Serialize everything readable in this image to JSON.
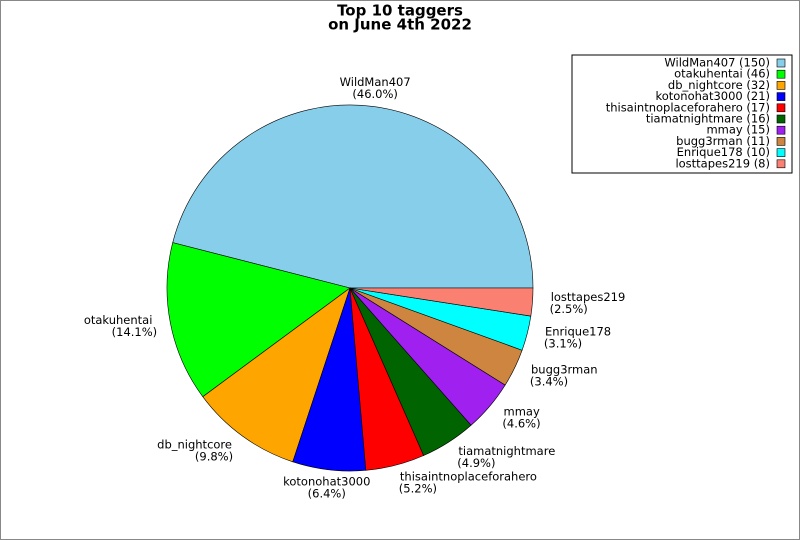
{
  "chart_data": {
    "type": "pie",
    "title": [
      "Top 10 taggers",
      "on June 4th 2022"
    ],
    "categories": [
      "WildMan407",
      "otakuhentai",
      "db_nightcore",
      "kotonohat3000",
      "thisaintnoplaceforahero",
      "tiamatnightmare",
      "mmay",
      "bugg3rman",
      "Enrique178",
      "losttapes219"
    ],
    "values": [
      150,
      46,
      32,
      21,
      17,
      16,
      15,
      11,
      10,
      8
    ],
    "value_labels": [
      "(46.0%)",
      "(14.1%)",
      "(9.8%)",
      "(6.4%)",
      "(5.2%)",
      "(4.9%)",
      "(4.6%)",
      "(3.4%)",
      "(3.1%)",
      "(2.5%)"
    ],
    "legend_labels": [
      "WildMan407 (150)",
      "otakuhentai (46)",
      "db_nightcore (32)",
      "kotonohat3000 (21)",
      "thisaintnoplaceforahero (17)",
      "tiamatnightmare (16)",
      "mmay (15)",
      "bugg3rman (11)",
      "Enrique178 (10)",
      "losttapes219 (8)"
    ],
    "colors": [
      "#87ceeb",
      "#00ff00",
      "#ffa500",
      "#0000ff",
      "#ff0000",
      "#006400",
      "#a020f0",
      "#cd853f",
      "#00ffff",
      "#fa8072"
    ],
    "legend": "upper right"
  }
}
